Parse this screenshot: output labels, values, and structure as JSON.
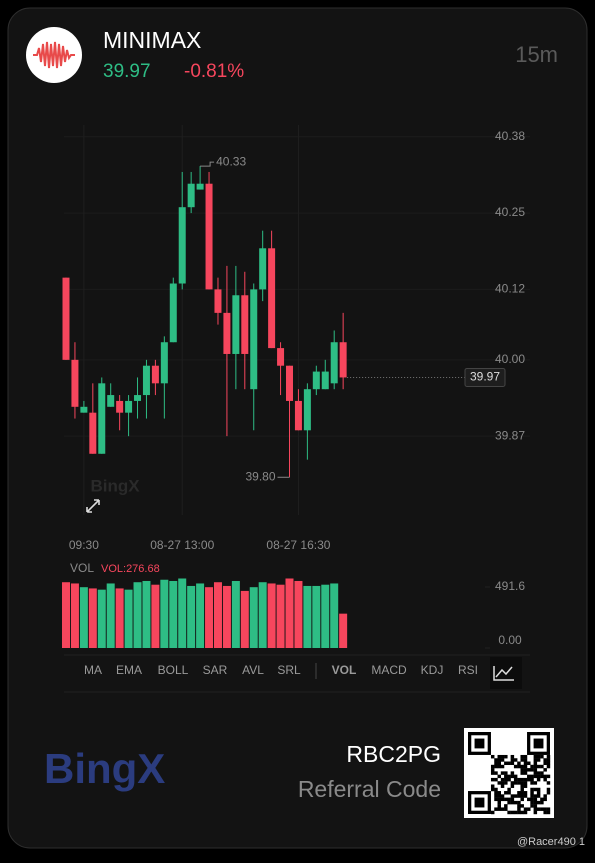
{
  "header": {
    "symbol": "MINIMAX",
    "price": "39.97",
    "change": "-0.81%",
    "interval": "15m"
  },
  "chart_data": [
    {
      "type": "candlestick",
      "up_color": "#2ebd85",
      "down_color": "#f6465d",
      "categories": [
        null,
        null,
        "09:30",
        null,
        null,
        null,
        null,
        null,
        null,
        null,
        null,
        null,
        null,
        "08-27 13:00",
        null,
        null,
        null,
        null,
        null,
        null,
        null,
        null,
        null,
        null,
        null,
        null,
        "08-27 16:30",
        null,
        null,
        null,
        null,
        null
      ],
      "open": [
        40.14,
        40.0,
        39.91,
        39.91,
        39.84,
        39.92,
        39.93,
        39.91,
        39.93,
        39.94,
        39.99,
        39.96,
        40.03,
        40.13,
        40.26,
        40.29,
        40.3,
        40.12,
        40.08,
        40.01,
        40.11,
        39.95,
        40.12,
        40.19,
        40.02,
        39.99,
        39.93,
        39.88,
        39.95,
        39.95,
        39.96,
        40.03
      ],
      "high": [
        40.14,
        40.03,
        39.93,
        39.96,
        39.97,
        39.96,
        39.94,
        39.94,
        39.97,
        40.0,
        40.0,
        40.04,
        40.14,
        40.32,
        40.32,
        40.33,
        40.32,
        40.14,
        40.16,
        40.16,
        40.15,
        40.13,
        40.22,
        40.22,
        40.03,
        39.99,
        39.95,
        39.96,
        39.99,
        40.0,
        40.05,
        40.08
      ],
      "low": [
        40.0,
        39.9,
        39.91,
        39.84,
        39.84,
        39.92,
        39.88,
        39.87,
        39.9,
        39.9,
        39.94,
        39.9,
        40.03,
        40.12,
        40.25,
        40.29,
        40.12,
        40.06,
        39.87,
        39.95,
        39.95,
        39.88,
        40.1,
        40.02,
        39.94,
        39.8,
        39.88,
        39.83,
        39.94,
        39.95,
        39.95,
        39.95
      ],
      "close": [
        40.0,
        39.92,
        39.92,
        39.84,
        39.96,
        39.94,
        39.91,
        39.93,
        39.94,
        39.99,
        39.96,
        40.03,
        40.13,
        40.26,
        40.3,
        40.3,
        40.12,
        40.08,
        40.01,
        40.11,
        40.01,
        40.12,
        40.19,
        40.02,
        39.99,
        39.93,
        39.88,
        39.95,
        39.98,
        39.98,
        40.03,
        39.97
      ],
      "ylim": [
        39.78,
        40.4
      ],
      "yticks": [
        40.38,
        40.25,
        40.12,
        {
          "value": 40,
          "label": "40.00"
        },
        39.87
      ],
      "max_label": 40.33,
      "min_label": {
        "value": 39.8,
        "label": "39.80"
      },
      "last": 39.97,
      "watermark": "BingX",
      "grid": true
    },
    {
      "type": "bar",
      "title": "VOL",
      "value_label": "VOL:276.68",
      "values": [
        530,
        520,
        490,
        480,
        470,
        520,
        480,
        470,
        530,
        540,
        510,
        550,
        540,
        560,
        500,
        520,
        490,
        530,
        500,
        540,
        460,
        490,
        530,
        520,
        510,
        560,
        540,
        500,
        500,
        510,
        520,
        276.68
      ],
      "ylim": [
        0,
        564
      ],
      "yticks": [
        491.6,
        {
          "value": 0,
          "label": "0.00"
        }
      ]
    }
  ],
  "indicators": [
    "MA",
    "EMA",
    "BOLL",
    "SAR",
    "AVL",
    "SRL",
    "VOL",
    "MACD",
    "KDJ",
    "RSI"
  ],
  "active_indicator": 6,
  "brand": "BingX",
  "referral": {
    "code": "RBC2PG",
    "label": "Referral Code"
  },
  "footer": "@Racer490 1"
}
